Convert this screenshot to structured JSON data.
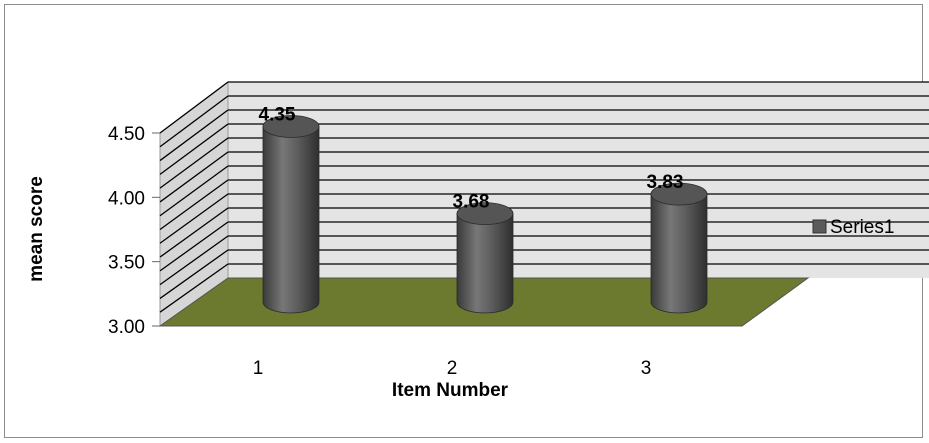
{
  "chart_data": {
    "type": "bar",
    "categories": [
      "1",
      "2",
      "3"
    ],
    "series": [
      {
        "name": "Series1",
        "values": [
          4.35,
          3.68,
          3.83
        ],
        "color": "#5a5a5a"
      }
    ],
    "data_labels": [
      "4.35",
      "3.68",
      "3.83"
    ],
    "xlabel": "Item Number",
    "ylabel": "mean  score",
    "ylim": [
      3.0,
      4.5
    ],
    "yticks": [
      "3.00",
      "3.50",
      "4.00",
      "4.50"
    ],
    "grid": true,
    "legend_position": "right",
    "style": "3d-cylinder",
    "colors": {
      "floor": "#6b7a2e",
      "walls": "#e3e3e3",
      "gridlines": "#000000",
      "cylinder": "#5a5a5a"
    }
  }
}
